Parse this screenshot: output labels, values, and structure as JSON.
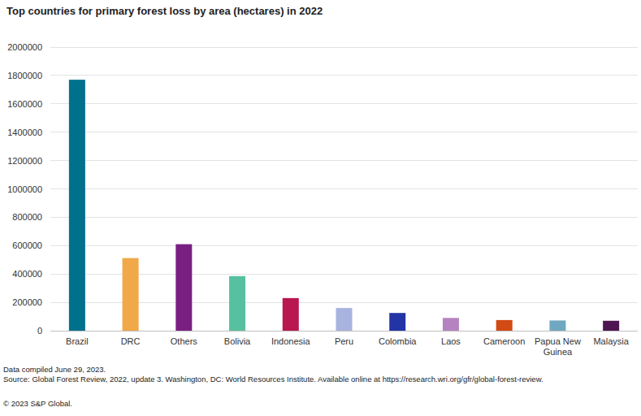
{
  "chart_data": {
    "type": "bar",
    "title": "Top countries for primary forest loss by area (hectares) in 2022",
    "categories": [
      "Brazil",
      "DRC",
      "Others",
      "Bolivia",
      "Indonesia",
      "Peru",
      "Colombia",
      "Laos",
      "Cameroon",
      "Papua New Guinea",
      "Malaysia"
    ],
    "values": [
      1770000,
      512000,
      610000,
      385000,
      230000,
      160000,
      125000,
      90000,
      75000,
      72000,
      70000
    ],
    "colors": [
      "#00718c",
      "#f0a848",
      "#7a1f82",
      "#57c0a0",
      "#b8174f",
      "#a9b3e0",
      "#2334a6",
      "#b583c0",
      "#d24a14",
      "#6fa8c0",
      "#4e1553"
    ],
    "ylim": [
      0,
      2000000
    ],
    "yticks": [
      0,
      200000,
      400000,
      600000,
      800000,
      1000000,
      1200000,
      1400000,
      1600000,
      1800000,
      2000000
    ],
    "grid": true,
    "annotations": [
      "Data compiled June 29, 2023.",
      "Source: Global Forest Review, 2022, update 3. Washington, DC: World Resources Institute. Available online at https://research.wri.org/gfr/global-forest-review.",
      "© 2023 S&P Global."
    ]
  }
}
